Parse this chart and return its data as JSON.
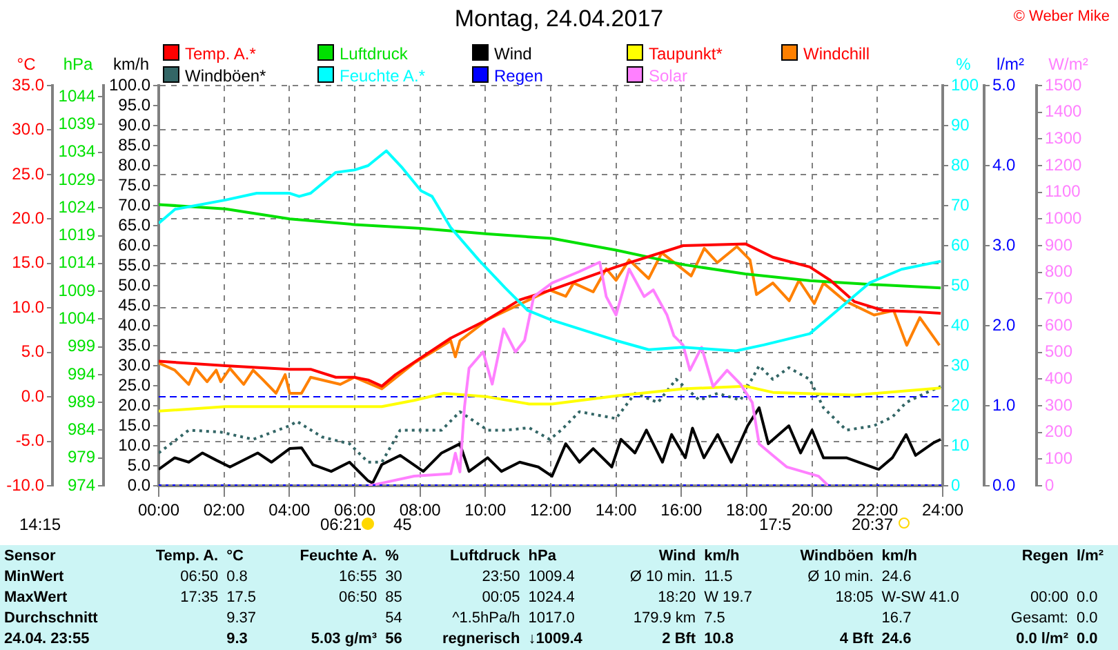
{
  "chart_data": [
    {
      "type": "line",
      "title": "Montag, 24.04.2017",
      "marker": "none",
      "grid": true,
      "legend": "top",
      "xlim": [
        0,
        24
      ],
      "xticks": [
        {
          "value": 0,
          "label": "00:00"
        },
        {
          "value": 2,
          "label": "02:00"
        },
        {
          "value": 4,
          "label": "04:00"
        },
        {
          "value": 6,
          "label": "06:00"
        },
        {
          "value": 8,
          "label": "08:00"
        },
        {
          "value": 10,
          "label": "10:00"
        },
        {
          "value": 12,
          "label": "12:00"
        },
        {
          "value": 14,
          "label": "14:00"
        },
        {
          "value": 16,
          "label": "16:00"
        },
        {
          "value": 18,
          "label": "18:00"
        },
        {
          "value": 20,
          "label": "20:00"
        },
        {
          "value": 22,
          "label": "22:00"
        },
        {
          "value": 24,
          "label": "24:00"
        }
      ],
      "ylabel": "°C",
      "ylim": [
        -10,
        35
      ],
      "yticks": [
        {
          "value": -10,
          "label": "-10.0"
        },
        {
          "value": -5,
          "label": "-5.0"
        },
        {
          "value": 0,
          "label": "0.0"
        },
        {
          "value": 5,
          "label": "5.0"
        },
        {
          "value": 10,
          "label": "10.0"
        },
        {
          "value": 15,
          "label": "15.0"
        },
        {
          "value": 20,
          "label": "20.0"
        },
        {
          "value": 25,
          "label": "25.0"
        },
        {
          "value": 30,
          "label": "30.0"
        },
        {
          "value": 35,
          "label": "35.0"
        }
      ],
      "y2label": "hPa",
      "y2lim": [
        974,
        1046
      ],
      "y2ticks": [
        974,
        979,
        984,
        989,
        994,
        999,
        1004,
        1009,
        1014,
        1019,
        1024,
        1029,
        1034,
        1039,
        1044
      ],
      "y3label": "km/h",
      "y3lim": [
        0,
        100
      ],
      "y3ticks": [
        {
          "value": 0,
          "label": "0.0"
        },
        {
          "value": 5,
          "label": "5.0"
        },
        {
          "value": 10,
          "label": "10.0"
        },
        {
          "value": 15,
          "label": "15.0"
        },
        {
          "value": 20,
          "label": "20.0"
        },
        {
          "value": 25,
          "label": "25.0"
        },
        {
          "value": 30,
          "label": "30.0"
        },
        {
          "value": 35,
          "label": "35.0"
        },
        {
          "value": 40,
          "label": "40.0"
        },
        {
          "value": 45,
          "label": "45.0"
        },
        {
          "value": 50,
          "label": "50.0"
        },
        {
          "value": 55,
          "label": "55.0"
        },
        {
          "value": 60,
          "label": "60.0"
        },
        {
          "value": 65,
          "label": "65.0"
        },
        {
          "value": 70,
          "label": "70.0"
        },
        {
          "value": 75,
          "label": "75.0"
        },
        {
          "value": 80,
          "label": "80.0"
        },
        {
          "value": 85,
          "label": "85.0"
        },
        {
          "value": 90,
          "label": "90.0"
        },
        {
          "value": 95,
          "label": "95.0"
        },
        {
          "value": 100,
          "label": "100.0"
        }
      ],
      "ref_lines": [
        {
          "axis": "y",
          "value": 0,
          "color": "#0000ff",
          "line_style": "dashed"
        }
      ],
      "series": [
        {
          "name": "Temp. A.*",
          "color": "#ff0000",
          "x": [
            0,
            2.04,
            4.01,
            4.65,
            5.42,
            5.99,
            6.41,
            6.83,
            7.25,
            8.03,
            8.94,
            10.07,
            11.05,
            12.0,
            14.0,
            16.05,
            17.96,
            18.8,
            19.93,
            20.56,
            21.3,
            22.18,
            23.02,
            23.94
          ],
          "values": [
            4.0,
            3.5,
            3.1,
            3.1,
            2.2,
            2.2,
            1.9,
            1.2,
            2.5,
            4.4,
            6.6,
            8.7,
            10.9,
            12.0,
            14.6,
            17.0,
            17.2,
            15.7,
            14.6,
            13.1,
            10.7,
            9.7,
            9.6,
            9.4
          ]
        },
        {
          "name": "Luftdruck",
          "color": "#00e000",
          "axis": "y2",
          "x": [
            0,
            2.04,
            4.01,
            5.99,
            8.03,
            10.07,
            12.04,
            14.0,
            16.05,
            17.96,
            19.93,
            21.9,
            23.94
          ],
          "values": [
            1024.6,
            1023.8,
            1022.0,
            1021.0,
            1020.3,
            1019.3,
            1018.5,
            1016.4,
            1013.8,
            1012.1,
            1010.9,
            1010.2,
            1009.6
          ]
        },
        {
          "name": "Wind",
          "color": "#000000",
          "axis": "y3",
          "x": [
            0,
            0.49,
            0.92,
            1.34,
            1.76,
            2.18,
            3.03,
            3.45,
            4.01,
            4.37,
            4.72,
            5.28,
            5.84,
            6.4,
            6.55,
            6.83,
            7.39,
            8.1,
            8.66,
            9.22,
            9.5,
            10.07,
            10.49,
            11.05,
            11.62,
            12.04,
            12.46,
            12.88,
            13.3,
            13.87,
            14.15,
            14.58,
            14.93,
            15.42,
            15.7,
            16.12,
            16.34,
            16.69,
            17.11,
            17.53,
            18.03,
            18.38,
            18.66,
            19.29,
            19.65,
            20.0,
            20.35,
            21.05,
            22.04,
            22.46,
            22.88,
            23.17,
            23.73,
            23.94
          ],
          "values": [
            4.1,
            7.0,
            5.9,
            8.2,
            6.4,
            4.7,
            8.2,
            5.9,
            9.3,
            9.5,
            5.3,
            3.6,
            5.9,
            1.3,
            0.7,
            5.3,
            7.6,
            3.6,
            8.2,
            10.5,
            3.6,
            7.0,
            3.6,
            5.9,
            4.7,
            2.4,
            10.5,
            5.9,
            9.3,
            4.7,
            11.6,
            8.2,
            13.9,
            5.9,
            12.8,
            7.0,
            14.4,
            7.0,
            12.8,
            5.9,
            15.0,
            19.5,
            10.5,
            15.0,
            8.2,
            13.9,
            7.0,
            7.0,
            4.1,
            7.0,
            12.8,
            7.6,
            10.8,
            11.6
          ]
        },
        {
          "name": "Taupunkt*",
          "color": "#ffff00",
          "x": [
            0,
            2.04,
            5.99,
            6.83,
            7.82,
            8.73,
            10.07,
            11.34,
            12.04,
            14.0,
            16.05,
            17.96,
            18.8,
            21.3,
            23.94
          ],
          "values": [
            -1.6,
            -1.1,
            -1.1,
            -1.1,
            -0.4,
            0.4,
            0.0,
            -0.8,
            -0.8,
            0.1,
            0.9,
            1.2,
            0.5,
            0.2,
            1.0
          ]
        },
        {
          "name": "Windchill",
          "color": "#ff8000",
          "x": [
            0,
            0.49,
            0.92,
            1.13,
            1.48,
            1.76,
            1.9,
            2.18,
            2.6,
            2.89,
            3.17,
            3.59,
            3.87,
            4.01,
            4.37,
            4.65,
            5.56,
            5.99,
            6.83,
            7.82,
            8.94,
            9.08,
            9.22,
            10.07,
            11.97,
            12.46,
            12.7,
            13.3,
            13.7,
            14.0,
            14.4,
            15.0,
            15.4,
            16.3,
            16.7,
            17.1,
            17.7,
            18.1,
            18.3,
            18.8,
            19.3,
            19.6,
            20.07,
            20.35,
            21.0,
            21.9,
            22.5,
            22.9,
            23.3,
            23.9
          ],
          "values": [
            3.8,
            3.0,
            1.4,
            3.2,
            1.7,
            3.0,
            1.7,
            3.2,
            1.4,
            3.0,
            2.0,
            0.4,
            2.5,
            0.4,
            0.4,
            2.2,
            1.4,
            2.2,
            0.9,
            3.8,
            6.3,
            4.5,
            6.3,
            8.7,
            12.0,
            11.3,
            12.8,
            11.8,
            14.4,
            13.1,
            15.4,
            13.3,
            16.2,
            13.6,
            16.7,
            15.1,
            16.9,
            15.4,
            11.5,
            12.8,
            10.8,
            13.1,
            10.5,
            12.8,
            10.8,
            9.2,
            9.7,
            5.8,
            8.9,
            5.8
          ]
        },
        {
          "name": "Windböen*",
          "color": "#336666",
          "axis": "y3",
          "line_style": "dotted",
          "x": [
            0,
            0.92,
            1.9,
            2.89,
            4.01,
            4.23,
            5.0,
            5.84,
            6.41,
            6.83,
            7.39,
            8.1,
            8.66,
            9.22,
            10.07,
            10.63,
            11.34,
            11.97,
            12.32,
            12.88,
            14.0,
            14.58,
            15.28,
            15.84,
            16.55,
            17.11,
            17.81,
            18.38,
            18.8,
            19.29,
            19.93,
            20.35,
            21.05,
            21.9,
            22.46,
            22.88,
            23.45,
            23.94
          ],
          "values": [
            8.2,
            13.9,
            13.4,
            11.6,
            15.0,
            16.1,
            12.2,
            10.5,
            5.9,
            5.9,
            13.9,
            13.9,
            13.9,
            18.5,
            13.9,
            13.9,
            14.5,
            11.6,
            13.9,
            18.5,
            16.8,
            23.1,
            20.8,
            26.6,
            21.4,
            23.1,
            21.4,
            30.0,
            26.6,
            29.5,
            26.6,
            19.5,
            13.9,
            15.0,
            17.2,
            20.8,
            23.1,
            24.8
          ]
        }
      ],
      "annotations": [
        "© Weber Mike",
        "14:15",
        "06:21",
        "45",
        "17:5",
        "20:37",
        "Sensor\tTemp. A.\t°C\tFeuchte A.\t%\tLuftdruck\thPa\tWind\tkm/h\tWindböen\tkm/h\tRegen\tl/m²",
        "MinWert\t06:50\t0.8\t16:55\t30\t23:50\t1009.4\tØ 10 min.\t11.5\tØ 10 min.\t24.6",
        "MaxWert\t17:35\t17.5\t06:50\t85\t00:05\t1024.4\t18:20\tW 19.7\t18:05\tW-SW 41.0\t00:00\t0.0",
        "Durchschnitt\t\t9.37\t\t54\t^1.5hPa/h\t1017.0\t179.9 km\t7.5\t\t16.7\tGesamt:\t0.0",
        "24.04. 23:55\t\t9.3\t5.03 g/m³\t56\tregnerisch\t↓1009.4\t2 Bft\t10.8\t4 Bft\t24.6\t0.0 l/m²\t0.0"
      ]
    },
    {
      "type": "line",
      "marker": "none",
      "legend": "top",
      "tick_labels": "y",
      "xlim": [
        0,
        24
      ],
      "ylabel": "%",
      "ylim": [
        0,
        100
      ],
      "yticks": [
        0,
        10,
        20,
        30,
        40,
        50,
        60,
        70,
        80,
        90,
        100
      ],
      "y2label": "l/m²",
      "y2lim": [
        0,
        5
      ],
      "y2ticks": [
        {
          "value": 0,
          "label": "0.0"
        },
        {
          "value": 1,
          "label": "1.0"
        },
        {
          "value": 2,
          "label": "2.0"
        },
        {
          "value": 3,
          "label": "3.0"
        },
        {
          "value": 4,
          "label": "4.0"
        },
        {
          "value": 5,
          "label": "5.0"
        }
      ],
      "y3label": "W/m²",
      "y3lim": [
        0,
        1500
      ],
      "y3ticks": [
        0,
        100,
        200,
        300,
        400,
        500,
        600,
        700,
        800,
        900,
        1000,
        1100,
        1200,
        1300,
        1400,
        1500
      ],
      "series": [
        {
          "name": "Feuchte A.*",
          "color": "#00ffff",
          "x": [
            0,
            0.5,
            2.04,
            3.0,
            4.01,
            4.3,
            4.65,
            5.42,
            5.99,
            6.41,
            6.97,
            7.46,
            8.03,
            8.37,
            8.94,
            9.8,
            10.6,
            11.3,
            12.0,
            14.0,
            15.0,
            16.05,
            17.67,
            18.52,
            19.93,
            20.77,
            21.76,
            22.74,
            23.94
          ],
          "values": [
            65.6,
            69.1,
            71.4,
            73.1,
            73.1,
            72.3,
            73.1,
            78.3,
            78.9,
            80.0,
            83.7,
            79.4,
            73.7,
            72.3,
            64.5,
            56.4,
            49.5,
            43.8,
            41.5,
            36.3,
            34.0,
            34.6,
            33.7,
            35.2,
            38.0,
            43.8,
            50.7,
            54.1,
            56.1
          ]
        },
        {
          "name": "Regen",
          "color": "#0000ff",
          "axis": "y2",
          "line_style": "dotted",
          "x": [
            0,
            24
          ],
          "values": [
            0,
            0
          ]
        },
        {
          "name": "Solar",
          "color": "#ff80ff",
          "axis": "y3",
          "x": [
            6.41,
            6.83,
            7.82,
            8.94,
            9.08,
            9.22,
            9.36,
            9.5,
            9.93,
            10.21,
            10.56,
            10.92,
            11.2,
            11.48,
            12.04,
            12.88,
            13.5,
            13.7,
            14.0,
            14.4,
            14.86,
            15.14,
            15.56,
            15.77,
            16.05,
            16.26,
            16.62,
            16.97,
            17.4,
            17.81,
            18.17,
            18.38,
            18.8,
            19.22,
            20.2,
            20.5
          ],
          "values": [
            0,
            10,
            36,
            45,
            122,
            52,
            295,
            441,
            502,
            381,
            588,
            502,
            545,
            709,
            760,
            803,
            838,
            709,
            640,
            812,
            709,
            734,
            640,
            562,
            528,
            433,
            519,
            372,
            433,
            381,
            312,
            157,
            114,
            71,
            36,
            0
          ]
        }
      ]
    }
  ]
}
